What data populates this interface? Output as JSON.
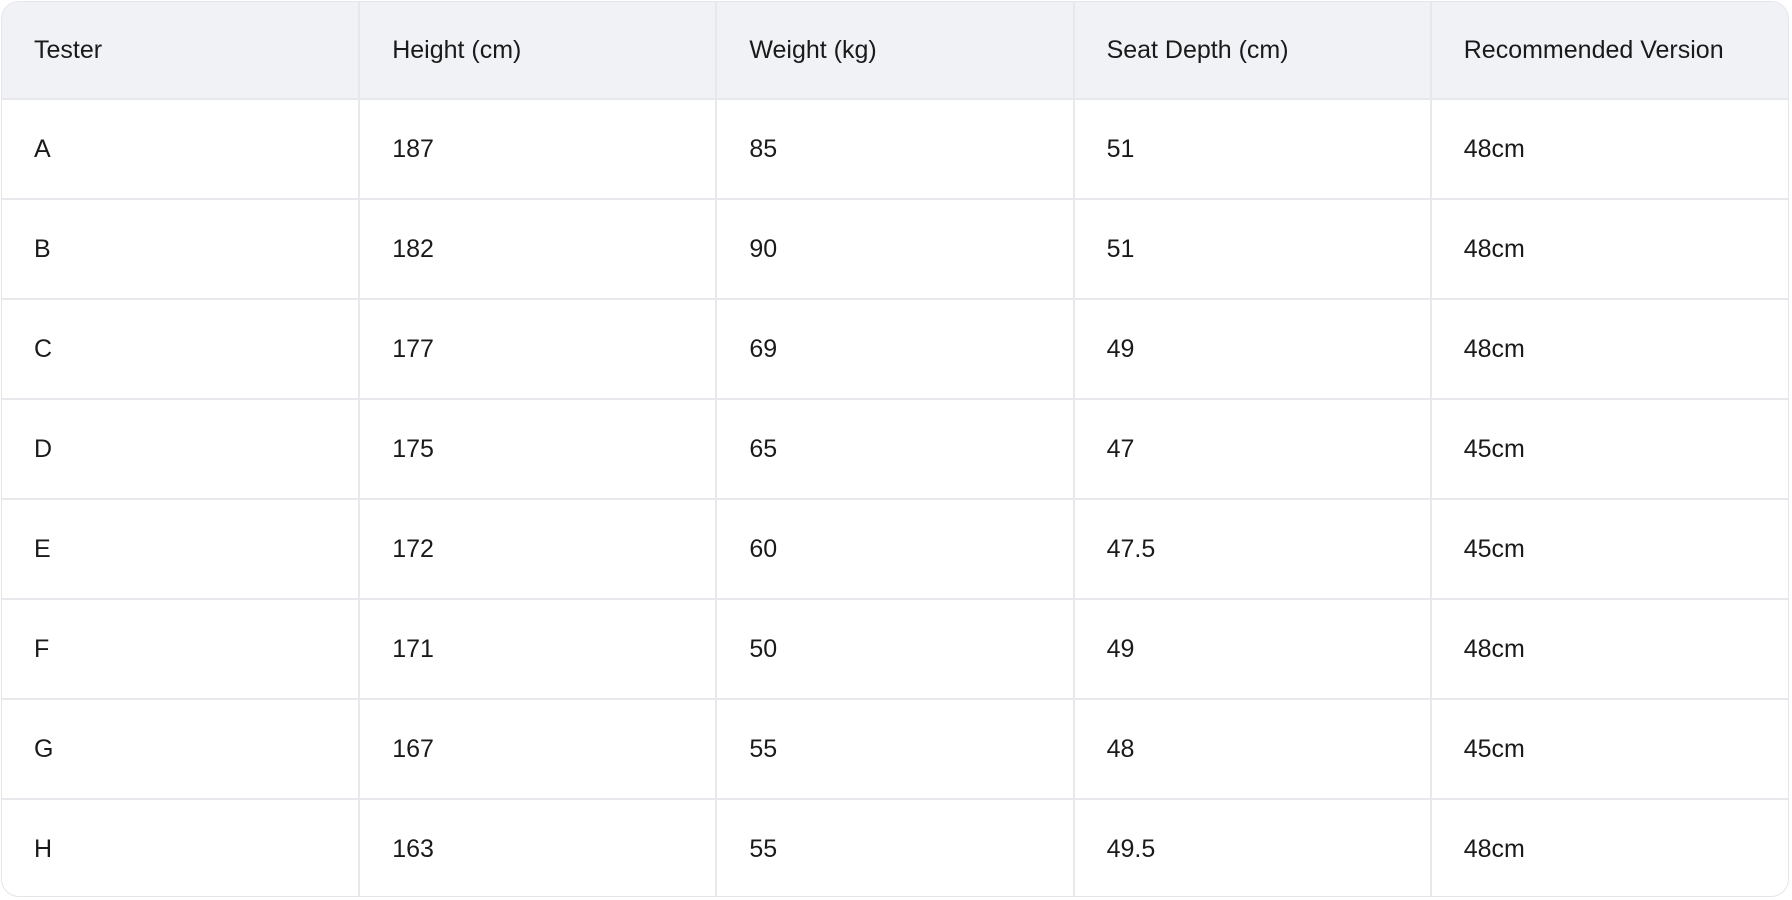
{
  "table": {
    "headers": [
      "Tester",
      "Height (cm)",
      "Weight (kg)",
      "Seat Depth (cm)",
      "Recommended Version"
    ],
    "rows": [
      [
        "A",
        "187",
        "85",
        "51",
        "48cm"
      ],
      [
        "B",
        "182",
        "90",
        "51",
        "48cm"
      ],
      [
        "C",
        "177",
        "69",
        "49",
        "48cm"
      ],
      [
        "D",
        "175",
        "65",
        "47",
        "45cm"
      ],
      [
        "E",
        "172",
        "60",
        "47.5",
        "45cm"
      ],
      [
        "F",
        "171",
        "50",
        "49",
        "48cm"
      ],
      [
        "G",
        "167",
        "55",
        "48",
        "45cm"
      ],
      [
        "H",
        "163",
        "55",
        "49.5",
        "48cm"
      ]
    ]
  }
}
